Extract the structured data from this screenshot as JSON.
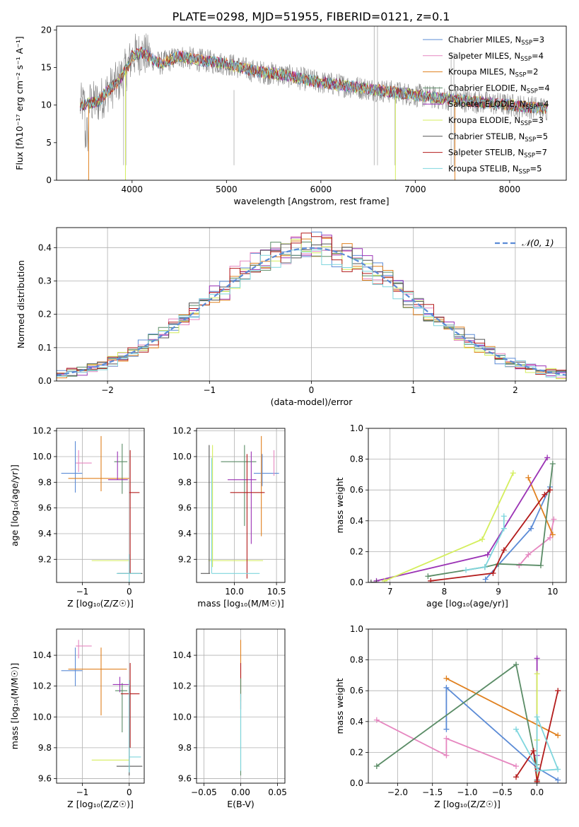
{
  "figure_title": "PLATE=0298, MJD=51955, FIBERID=0121, z=0.1",
  "colors": {
    "Chabrier MILES": "#5b8bd6",
    "Salpeter MILES": "#e687c0",
    "Kroupa MILES": "#e0801e",
    "Chabrier ELODIE": "#5a8c66",
    "Salpeter ELODIE": "#9b33b5",
    "Kroupa ELODIE": "#d4ee5c",
    "Chabrier STELIB": "#555555",
    "Salpeter STELIB": "#b31b1b",
    "Kroupa STELIB": "#7fd6de"
  },
  "chart_data": [
    {
      "id": "spectrum",
      "type": "line",
      "xlabel": "wavelength [Angstrom, rest frame]",
      "ylabel": "Flux [fλ10⁻¹⁷ erg cm⁻² s⁻¹ A⁻¹]",
      "xlim": [
        3200,
        8600
      ],
      "ylim": [
        0,
        20.5
      ],
      "xticks": [
        4000,
        5000,
        6000,
        7000,
        8000
      ],
      "yticks": [
        0,
        5,
        10,
        15,
        20
      ],
      "grid": false,
      "legend_position": "top-right",
      "legend": [
        {
          "name": "Chabrier MILES",
          "label": "Chabrier MILES, N",
          "sub": "SSP",
          "eq": "=3"
        },
        {
          "name": "Salpeter MILES",
          "label": "Salpeter MILES, N",
          "sub": "SSP",
          "eq": "=4"
        },
        {
          "name": "Kroupa MILES",
          "label": "Kroupa MILES, N",
          "sub": "SSP",
          "eq": "=2"
        },
        {
          "name": "Chabrier ELODIE",
          "label": "Chabrier ELODIE, N",
          "sub": "SSP",
          "eq": "=4"
        },
        {
          "name": "Salpeter ELODIE",
          "label": "Salpeter ELODIE, N",
          "sub": "SSP",
          "eq": "=4"
        },
        {
          "name": "Kroupa ELODIE",
          "label": "Kroupa ELODIE, N",
          "sub": "SSP",
          "eq": "=3"
        },
        {
          "name": "Chabrier STELIB",
          "label": "Chabrier STELIB, N",
          "sub": "SSP",
          "eq": "=5"
        },
        {
          "name": "Salpeter STELIB",
          "label": "Salpeter STELIB, N",
          "sub": "SSP",
          "eq": "=7"
        },
        {
          "name": "Kroupa STELIB",
          "label": "Kroupa STELIB, N",
          "sub": "SSP",
          "eq": "=5"
        }
      ],
      "continuum_points": {
        "x": [
          3450,
          3650,
          3750,
          3850,
          3950,
          4000,
          4100,
          4300,
          4500,
          4700,
          5000,
          5300,
          5600,
          6000,
          6300,
          6600,
          6900,
          7200,
          7600,
          8000,
          8400
        ],
        "y": [
          10,
          10.5,
          12,
          13,
          15,
          16.5,
          17,
          15.5,
          16.5,
          16,
          15.5,
          14.5,
          14,
          13,
          12.5,
          12,
          11.5,
          11,
          10.5,
          10,
          9.5
        ]
      },
      "observed_spikes_x": [
        3910,
        3935,
        5080,
        6565,
        6600,
        6785,
        7380,
        7410
      ]
    },
    {
      "id": "residuals",
      "type": "histogram",
      "xlabel": "(data-model)/error",
      "ylabel": "Normed distribution",
      "xlim": [
        -2.5,
        2.5
      ],
      "ylim": [
        0,
        0.46
      ],
      "xticks": [
        -2,
        -1,
        0,
        1,
        2
      ],
      "yticks": [
        0.0,
        0.1,
        0.2,
        0.3,
        0.4
      ],
      "grid": true,
      "legend_position": "top-right",
      "reference_curve": {
        "name": "N(0,1)",
        "label": "𝒩(0, 1)",
        "mean": 0,
        "sigma": 1
      },
      "bin_width": 0.1
    },
    {
      "id": "age-vs-Z",
      "type": "scatter",
      "xlabel": "Z [log₁₀(Z/Z☉)]",
      "ylabel": "age  [log₁₀(age/yr)]",
      "xlim": [
        -1.55,
        0.32
      ],
      "ylim": [
        9.02,
        10.22
      ],
      "xticks": [
        -1,
        0
      ],
      "yticks": [
        9.2,
        9.4,
        9.6,
        9.8,
        10.0,
        10.2
      ],
      "grid": true,
      "points": [
        {
          "name": "Chabrier MILES",
          "x": -1.15,
          "y": 9.87,
          "xerr": [
            0.3,
            0.15
          ],
          "yerr": [
            0.15,
            0.25
          ]
        },
        {
          "name": "Salpeter MILES",
          "x": -1.08,
          "y": 9.95,
          "xerr": [
            0.06,
            0.28
          ],
          "yerr": [
            0.07,
            0.1
          ]
        },
        {
          "name": "Kroupa MILES",
          "x": -0.6,
          "y": 9.83,
          "xerr": [
            0.7,
            0.6
          ],
          "yerr": [
            0.1,
            0.33
          ]
        },
        {
          "name": "Chabrier ELODIE",
          "x": -0.15,
          "y": 9.96,
          "xerr": [
            0.17,
            0.11
          ],
          "yerr": [
            0.25,
            0.14
          ]
        },
        {
          "name": "Salpeter ELODIE",
          "x": -0.25,
          "y": 9.82,
          "xerr": [
            0.2,
            0.22
          ],
          "yerr": [
            0.0,
            0.22
          ]
        },
        {
          "name": "Kroupa ELODIE",
          "x": -0.35,
          "y": 9.19,
          "xerr": [
            0.45,
            0.35
          ],
          "yerr": [
            0.0,
            0.0
          ]
        },
        {
          "name": "Chabrier STELIB",
          "x": 0.0,
          "y": 9.09,
          "xerr": [
            0.25,
            0.28
          ],
          "yerr": [
            0.0,
            0.0
          ]
        },
        {
          "name": "Salpeter STELIB",
          "x": 0.02,
          "y": 9.72,
          "xerr": [
            0.02,
            0.2
          ],
          "yerr": [
            0.63,
            0.33
          ]
        },
        {
          "name": "Kroupa STELIB",
          "x": 0.0,
          "y": 9.09,
          "xerr": [
            0.27,
            0.25
          ],
          "yerr": [
            0.1,
            0.15
          ]
        }
      ]
    },
    {
      "id": "age-vs-mass",
      "type": "scatter",
      "xlabel": "mass [log₁₀(M/M☉)]",
      "ylabel": "",
      "xlim": [
        9.55,
        10.6
      ],
      "ylim": [
        9.02,
        10.22
      ],
      "xticks": [
        10.0,
        10.5
      ],
      "yticks": [
        9.2,
        9.4,
        9.6,
        9.8,
        10.0,
        10.2
      ],
      "grid": true,
      "points": [
        {
          "name": "Chabrier MILES",
          "x": 10.33,
          "y": 9.87,
          "xerr": [
            0.1,
            0.2
          ],
          "yerr": [
            0.1,
            0.15
          ]
        },
        {
          "name": "Salpeter MILES",
          "x": 10.47,
          "y": 9.95,
          "xerr": [
            0.0,
            0.0
          ],
          "yerr": [
            0.1,
            0.1
          ]
        },
        {
          "name": "Kroupa MILES",
          "x": 10.32,
          "y": 9.83,
          "xerr": [
            0.0,
            0.0
          ],
          "yerr": [
            0.45,
            0.33
          ]
        },
        {
          "name": "Chabrier ELODIE",
          "x": 10.12,
          "y": 9.96,
          "xerr": [
            0.28,
            0.14
          ],
          "yerr": [
            0.5,
            0.13
          ]
        },
        {
          "name": "Salpeter ELODIE",
          "x": 10.2,
          "y": 9.82,
          "xerr": [
            0.28,
            0.06
          ],
          "yerr": [
            0.5,
            0.22
          ]
        },
        {
          "name": "Kroupa ELODIE",
          "x": 9.74,
          "y": 9.19,
          "xerr": [
            0.05,
            0.6
          ],
          "yerr": [
            0.05,
            0.9
          ]
        },
        {
          "name": "Chabrier STELIB",
          "x": 9.7,
          "y": 9.09,
          "xerr": [
            0.1,
            0.01
          ],
          "yerr": [
            0.0,
            1.0
          ]
        },
        {
          "name": "Salpeter STELIB",
          "x": 10.15,
          "y": 9.72,
          "xerr": [
            0.2,
            0.21
          ],
          "yerr": [
            0.67,
            0.3
          ]
        },
        {
          "name": "Kroupa STELIB",
          "x": 9.73,
          "y": 9.09,
          "xerr": [
            0.0,
            0.57
          ],
          "yerr": [
            0.0,
            0.9
          ]
        }
      ]
    },
    {
      "id": "weight-vs-age",
      "type": "line",
      "xlabel": "age  [log₁₀(age/yr)]",
      "ylabel": "mass weight",
      "xlim": [
        6.6,
        10.25
      ],
      "ylim": [
        0,
        1.0
      ],
      "xticks": [
        7,
        8,
        9,
        10
      ],
      "yticks": [
        0.0,
        0.2,
        0.4,
        0.6,
        0.8,
        1.0
      ],
      "grid": true,
      "series": [
        {
          "name": "Chabrier MILES",
          "x": [
            8.76,
            9.6,
            9.95
          ],
          "y": [
            0.02,
            0.35,
            0.62
          ]
        },
        {
          "name": "Salpeter MILES",
          "x": [
            9.38,
            9.55,
            9.95,
            10.02
          ],
          "y": [
            0.11,
            0.18,
            0.29,
            0.41
          ]
        },
        {
          "name": "Kroupa MILES",
          "x": [
            9.55,
            10.0
          ],
          "y": [
            0.68,
            0.31
          ]
        },
        {
          "name": "Chabrier ELODIE",
          "x": [
            7.7,
            8.75,
            9.0,
            9.78,
            10.0
          ],
          "y": [
            0.04,
            0.1,
            0.12,
            0.11,
            0.77
          ]
        },
        {
          "name": "Salpeter ELODIE",
          "x": [
            6.75,
            8.8,
            9.9
          ],
          "y": [
            0.01,
            0.18,
            0.81
          ]
        },
        {
          "name": "Kroupa ELODIE",
          "x": [
            6.9,
            8.7,
            9.27
          ],
          "y": [
            0.01,
            0.28,
            0.71
          ]
        },
        {
          "name": "Chabrier STELIB",
          "x": [
            6.65,
            6.75
          ],
          "y": [
            0.0,
            0.0
          ]
        },
        {
          "name": "Salpeter STELIB",
          "x": [
            7.75,
            8.9,
            9.1,
            9.85,
            9.95
          ],
          "y": [
            0.01,
            0.06,
            0.21,
            0.57,
            0.6
          ]
        },
        {
          "name": "Kroupa STELIB",
          "x": [
            8.4,
            8.75,
            9.1,
            9.1
          ],
          "y": [
            0.08,
            0.1,
            0.35,
            0.43
          ]
        }
      ]
    },
    {
      "id": "mass-vs-Z",
      "type": "scatter",
      "xlabel": "Z [log₁₀(Z/Z☉)]",
      "ylabel": "mass [log₁₀(M/M☉)]",
      "xlim": [
        -1.55,
        0.32
      ],
      "ylim": [
        9.57,
        10.57
      ],
      "xticks": [
        -1,
        0
      ],
      "yticks": [
        9.6,
        9.8,
        10.0,
        10.2,
        10.4
      ],
      "grid": true,
      "points": [
        {
          "name": "Chabrier MILES",
          "x": -1.15,
          "y": 10.3,
          "xerr": [
            0.3,
            0.15
          ],
          "yerr": [
            0.1,
            0.15
          ]
        },
        {
          "name": "Salpeter MILES",
          "x": -1.08,
          "y": 10.46,
          "xerr": [
            0.06,
            0.28
          ],
          "yerr": [
            0.08,
            0.04
          ]
        },
        {
          "name": "Kroupa MILES",
          "x": -0.6,
          "y": 10.31,
          "xerr": [
            0.7,
            0.55
          ],
          "yerr": [
            0.3,
            0.14
          ]
        },
        {
          "name": "Chabrier ELODIE",
          "x": -0.15,
          "y": 10.17,
          "xerr": [
            0.15,
            0.11
          ],
          "yerr": [
            0.27,
            0.05
          ]
        },
        {
          "name": "Salpeter ELODIE",
          "x": -0.2,
          "y": 10.21,
          "xerr": [
            0.15,
            0.2
          ],
          "yerr": [
            0.05,
            0.05
          ]
        },
        {
          "name": "Kroupa ELODIE",
          "x": -0.35,
          "y": 9.72,
          "xerr": [
            0.45,
            0.35
          ],
          "yerr": [
            0.0,
            0.0
          ]
        },
        {
          "name": "Chabrier STELIB",
          "x": 0.0,
          "y": 9.68,
          "xerr": [
            0.27,
            0.28
          ],
          "yerr": [
            0.06,
            0.52
          ]
        },
        {
          "name": "Salpeter STELIB",
          "x": 0.02,
          "y": 10.15,
          "xerr": [
            0.2,
            0.2
          ],
          "yerr": [
            0.35,
            0.2
          ]
        },
        {
          "name": "Kroupa STELIB",
          "x": 0.0,
          "y": 9.74,
          "xerr": [
            0.0,
            0.25
          ],
          "yerr": [
            0.1,
            0.5
          ]
        }
      ]
    },
    {
      "id": "mass-vs-EBV",
      "type": "scatter",
      "xlabel": "E(B-V)",
      "ylabel": "",
      "xlim": [
        -0.06,
        0.06
      ],
      "ylim": [
        9.57,
        10.57
      ],
      "xticks": [
        -0.05,
        0.0,
        0.05
      ],
      "yticks": [
        9.6,
        9.8,
        10.0,
        10.2,
        10.4
      ],
      "grid": true,
      "points": [
        {
          "name": "Kroupa MILES",
          "x": 0.0,
          "y": 10.2,
          "xerr": [
            0,
            0
          ],
          "yerr": [
            0.1,
            0.3
          ]
        },
        {
          "name": "Salpeter STELIB",
          "x": 0.0,
          "y": 10.15,
          "xerr": [
            0,
            0
          ],
          "yerr": [
            0.1,
            0.2
          ]
        },
        {
          "name": "Chabrier ELODIE",
          "x": 0.0,
          "y": 10.0,
          "xerr": [
            0,
            0
          ],
          "yerr": [
            0.38,
            0.25
          ]
        },
        {
          "name": "Kroupa STELIB",
          "x": 0.0,
          "y": 9.75,
          "xerr": [
            0,
            0
          ],
          "yerr": [
            0.1,
            0.4
          ]
        }
      ]
    },
    {
      "id": "weight-vs-Z",
      "type": "line",
      "xlabel": "Z [log₁₀(Z/Z☉)]",
      "ylabel": "mass weight",
      "xlim": [
        -2.42,
        0.42
      ],
      "ylim": [
        0,
        1.0
      ],
      "xticks": [
        -2.0,
        -1.5,
        -1.0,
        -0.5,
        0.0
      ],
      "yticks": [
        0.0,
        0.2,
        0.4,
        0.6,
        0.8,
        1.0
      ],
      "grid": true,
      "series": [
        {
          "name": "Chabrier MILES",
          "x": [
            -1.3,
            -1.3,
            0.0,
            0.3
          ],
          "y": [
            0.35,
            0.62,
            0.1,
            0.02
          ]
        },
        {
          "name": "Salpeter MILES",
          "x": [
            -2.3,
            -1.3,
            -1.3,
            -0.3
          ],
          "y": [
            0.41,
            0.18,
            0.29,
            0.11
          ]
        },
        {
          "name": "Kroupa MILES",
          "x": [
            -1.3,
            0.3
          ],
          "y": [
            0.68,
            0.31
          ]
        },
        {
          "name": "Chabrier ELODIE",
          "x": [
            -2.3,
            -0.3,
            0.0,
            0.0
          ],
          "y": [
            0.11,
            0.77,
            0.1,
            0.12
          ]
        },
        {
          "name": "Salpeter ELODIE",
          "x": [
            0.0,
            0.0,
            0.0
          ],
          "y": [
            0.01,
            0.18,
            0.81
          ]
        },
        {
          "name": "Kroupa ELODIE",
          "x": [
            0.0,
            0.0,
            0.0
          ],
          "y": [
            0.01,
            0.28,
            0.71
          ]
        },
        {
          "name": "Chabrier STELIB",
          "x": [
            0.0,
            0.0
          ],
          "y": [
            0.0,
            0.02
          ]
        },
        {
          "name": "Salpeter STELIB",
          "x": [
            -0.3,
            -0.05,
            0.0,
            0.3
          ],
          "y": [
            0.04,
            0.21,
            0.01,
            0.6
          ]
        },
        {
          "name": "Kroupa STELIB",
          "x": [
            -0.3,
            0.0,
            0.0,
            0.3,
            0.0
          ],
          "y": [
            0.35,
            0.1,
            0.43,
            0.09,
            0.08
          ]
        }
      ]
    }
  ]
}
